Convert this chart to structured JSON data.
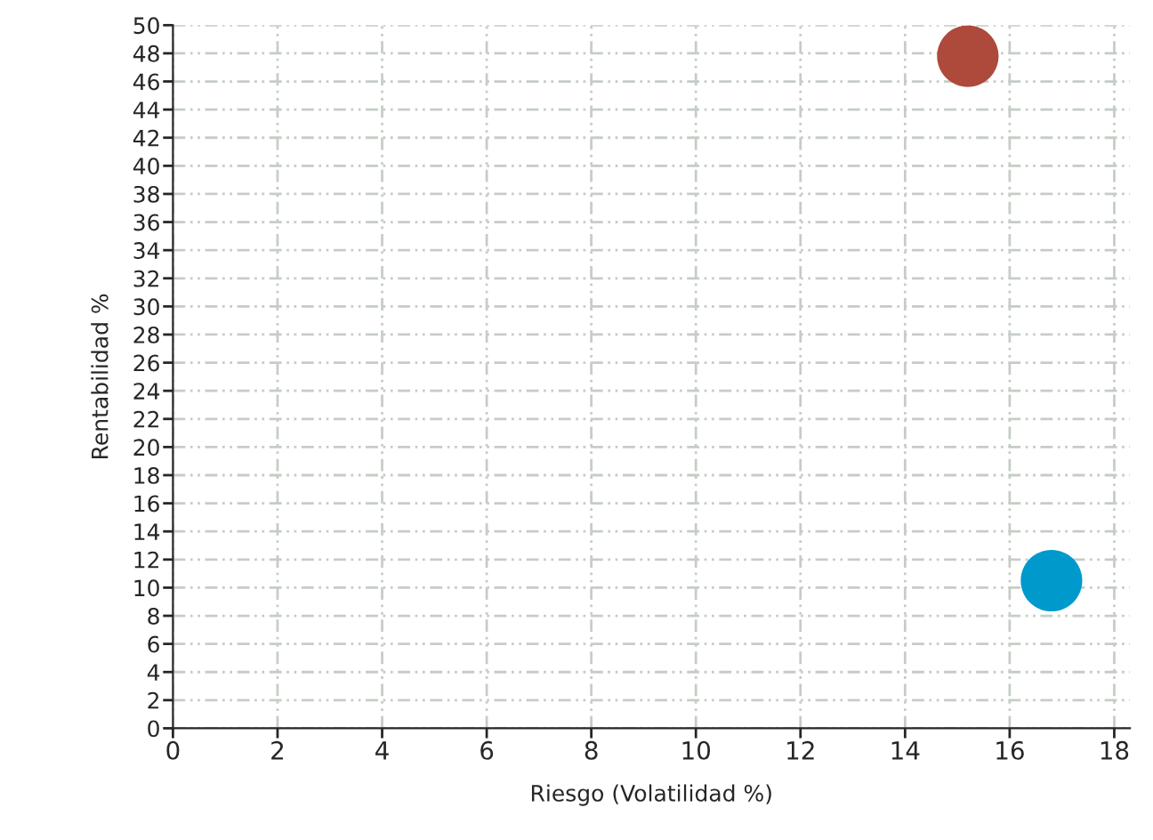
{
  "chart_data": {
    "type": "scatter",
    "xlabel": "Riesgo (Volatilidad %)",
    "ylabel": "Rentabilidad %",
    "series": [
      {
        "color": "#ad4a3c",
        "x": [
          15.2
        ],
        "values": [
          47.8
        ]
      },
      {
        "color": "#0099cc",
        "x": [
          16.8
        ],
        "values": [
          10.5
        ]
      }
    ],
    "xlim": [
      0,
      18.3
    ],
    "xticks": [
      0,
      2,
      4,
      6,
      8,
      10,
      12,
      14,
      16,
      18
    ],
    "ylim": [
      0,
      50
    ],
    "yticks": [
      0,
      2,
      4,
      6,
      8,
      10,
      12,
      14,
      16,
      18,
      20,
      22,
      24,
      26,
      28,
      30,
      32,
      34,
      36,
      38,
      40,
      42,
      44,
      46,
      48,
      50
    ],
    "grid": true,
    "marker": "circle"
  }
}
